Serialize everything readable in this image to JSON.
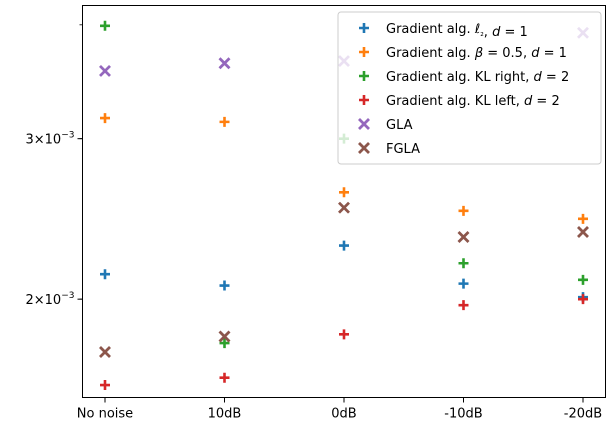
{
  "chart_data": {
    "type": "scatter",
    "categories": [
      "No noise",
      "10dB",
      "0dB",
      "-10dB",
      "-20dB"
    ],
    "yscale": "log",
    "ylim": [
      0.00156,
      0.0042
    ],
    "yticks": [
      {
        "value": 0.003,
        "base": "3",
        "mult": "×",
        "pow_base": "10",
        "exp": "−3"
      },
      {
        "value": 0.002,
        "base": "2",
        "mult": "×",
        "pow_base": "10",
        "exp": "−3"
      }
    ],
    "grid": false,
    "legend_position": "top-right",
    "series": [
      {
        "name": "Gradient alg. ℓ₂, d = 1",
        "marker": "plus",
        "color": "#1f77b4",
        "legend_parts": [
          {
            "t": "Gradient alg. "
          },
          {
            "t": "ℓ",
            "i": true
          },
          {
            "t": "₂",
            "sub": true
          },
          {
            "t": ", "
          },
          {
            "t": "d",
            "i": true
          },
          {
            "t": " = 1"
          }
        ],
        "values": [
          0.00213,
          0.00207,
          0.00229,
          0.00208,
          0.00201
        ]
      },
      {
        "name": "Gradient alg. β = 0.5, d = 1",
        "marker": "plus",
        "color": "#ff7f0e",
        "legend_parts": [
          {
            "t": "Gradient alg. "
          },
          {
            "t": "β",
            "i": true
          },
          {
            "t": " = 0.5, "
          },
          {
            "t": "d",
            "i": true
          },
          {
            "t": " = 1"
          }
        ],
        "values": [
          0.00316,
          0.00313,
          0.00262,
          0.0025,
          0.00245
        ]
      },
      {
        "name": "Gradient alg. KL right, d = 2",
        "marker": "plus",
        "color": "#2ca02c",
        "legend_parts": [
          {
            "t": "Gradient alg. KL right, "
          },
          {
            "t": "d",
            "i": true
          },
          {
            "t": " = 2"
          }
        ],
        "values": [
          0.00399,
          0.00179,
          0.003,
          0.00219,
          0.0021
        ]
      },
      {
        "name": "Gradient alg. KL left, d = 2",
        "marker": "plus",
        "color": "#d62728",
        "legend_parts": [
          {
            "t": "Gradient alg. KL left, "
          },
          {
            "t": "d",
            "i": true
          },
          {
            "t": " = 2"
          }
        ],
        "values": [
          0.00161,
          0.00164,
          0.00183,
          0.00197,
          0.002
        ]
      },
      {
        "name": "GLA",
        "marker": "x",
        "color": "#9467bd",
        "legend_parts": [
          {
            "t": "GLA"
          }
        ],
        "values": [
          0.00356,
          0.00363,
          0.00365,
          0.0,
          0.00392
        ]
      },
      {
        "name": "FGLA",
        "marker": "x",
        "color": "#8c564b",
        "legend_parts": [
          {
            "t": "FGLA"
          }
        ],
        "values": [
          0.00175,
          0.00182,
          0.00252,
          0.00234,
          0.00237
        ]
      }
    ]
  }
}
